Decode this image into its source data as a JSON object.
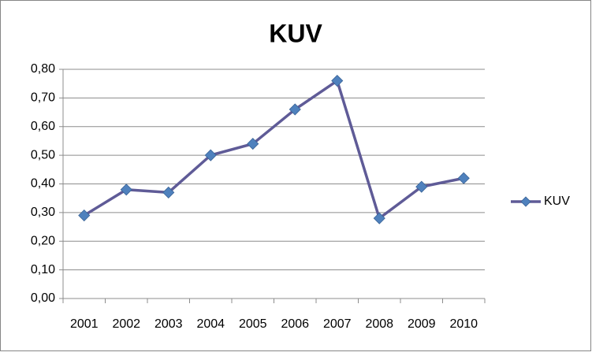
{
  "chart_data": {
    "type": "line",
    "title": "KUV",
    "categories": [
      "2001",
      "2002",
      "2003",
      "2004",
      "2005",
      "2006",
      "2007",
      "2008",
      "2009",
      "2010"
    ],
    "series": [
      {
        "name": "KUV",
        "line_color": "#5f5b97",
        "marker_color": "#4f81bd",
        "values": [
          0.29,
          0.38,
          0.37,
          0.5,
          0.54,
          0.66,
          0.76,
          0.28,
          0.39,
          0.42
        ]
      }
    ],
    "ylim": [
      0,
      0.8
    ],
    "yticks": [
      {
        "value": 0,
        "label": "0,00"
      },
      {
        "value": 0.1,
        "label": "0,10"
      },
      {
        "value": 0.2,
        "label": "0,20"
      },
      {
        "value": 0.3,
        "label": "0,30"
      },
      {
        "value": 0.4,
        "label": "0,40"
      },
      {
        "value": 0.5,
        "label": "0,50"
      },
      {
        "value": 0.6,
        "label": "0,60"
      },
      {
        "value": 0.7,
        "label": "0,70"
      },
      {
        "value": 0.8,
        "label": "0,80"
      }
    ],
    "grid": true,
    "legend": "right"
  }
}
